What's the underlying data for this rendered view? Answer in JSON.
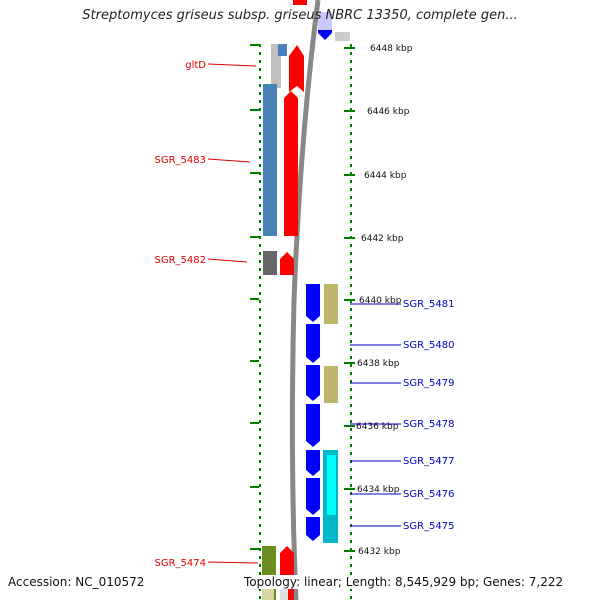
{
  "title": "Streptomyces griseus subsp. griseus NBRC 13350, complete gen...",
  "accession_text": "Accession: NC_010572",
  "topology_text": "Topology: linear; Length: 8,545,929 bp; Genes: 7,222",
  "colors": {
    "left_label": "#dd0000",
    "right_label": "#0000cc",
    "tick": "#008000",
    "backbone": "#888888"
  },
  "scale": {
    "unit": "kbp",
    "ticks": [
      "6448 kbp",
      "6446 kbp",
      "6444 kbp",
      "6442 kbp",
      "6440 kbp",
      "6438 kbp",
      "6436 kbp",
      "6434 kbp",
      "6432 kbp"
    ]
  },
  "genes_left": [
    {
      "label": "gltD"
    },
    {
      "label": "SGR_5483"
    },
    {
      "label": "SGR_5482"
    },
    {
      "label": "SGR_5474"
    }
  ],
  "genes_right": [
    {
      "label": "SGR_5481"
    },
    {
      "label": "SGR_5480"
    },
    {
      "label": "SGR_5479"
    },
    {
      "label": "SGR_5478"
    },
    {
      "label": "SGR_5477"
    },
    {
      "label": "SGR_5476"
    },
    {
      "label": "SGR_5475"
    }
  ]
}
